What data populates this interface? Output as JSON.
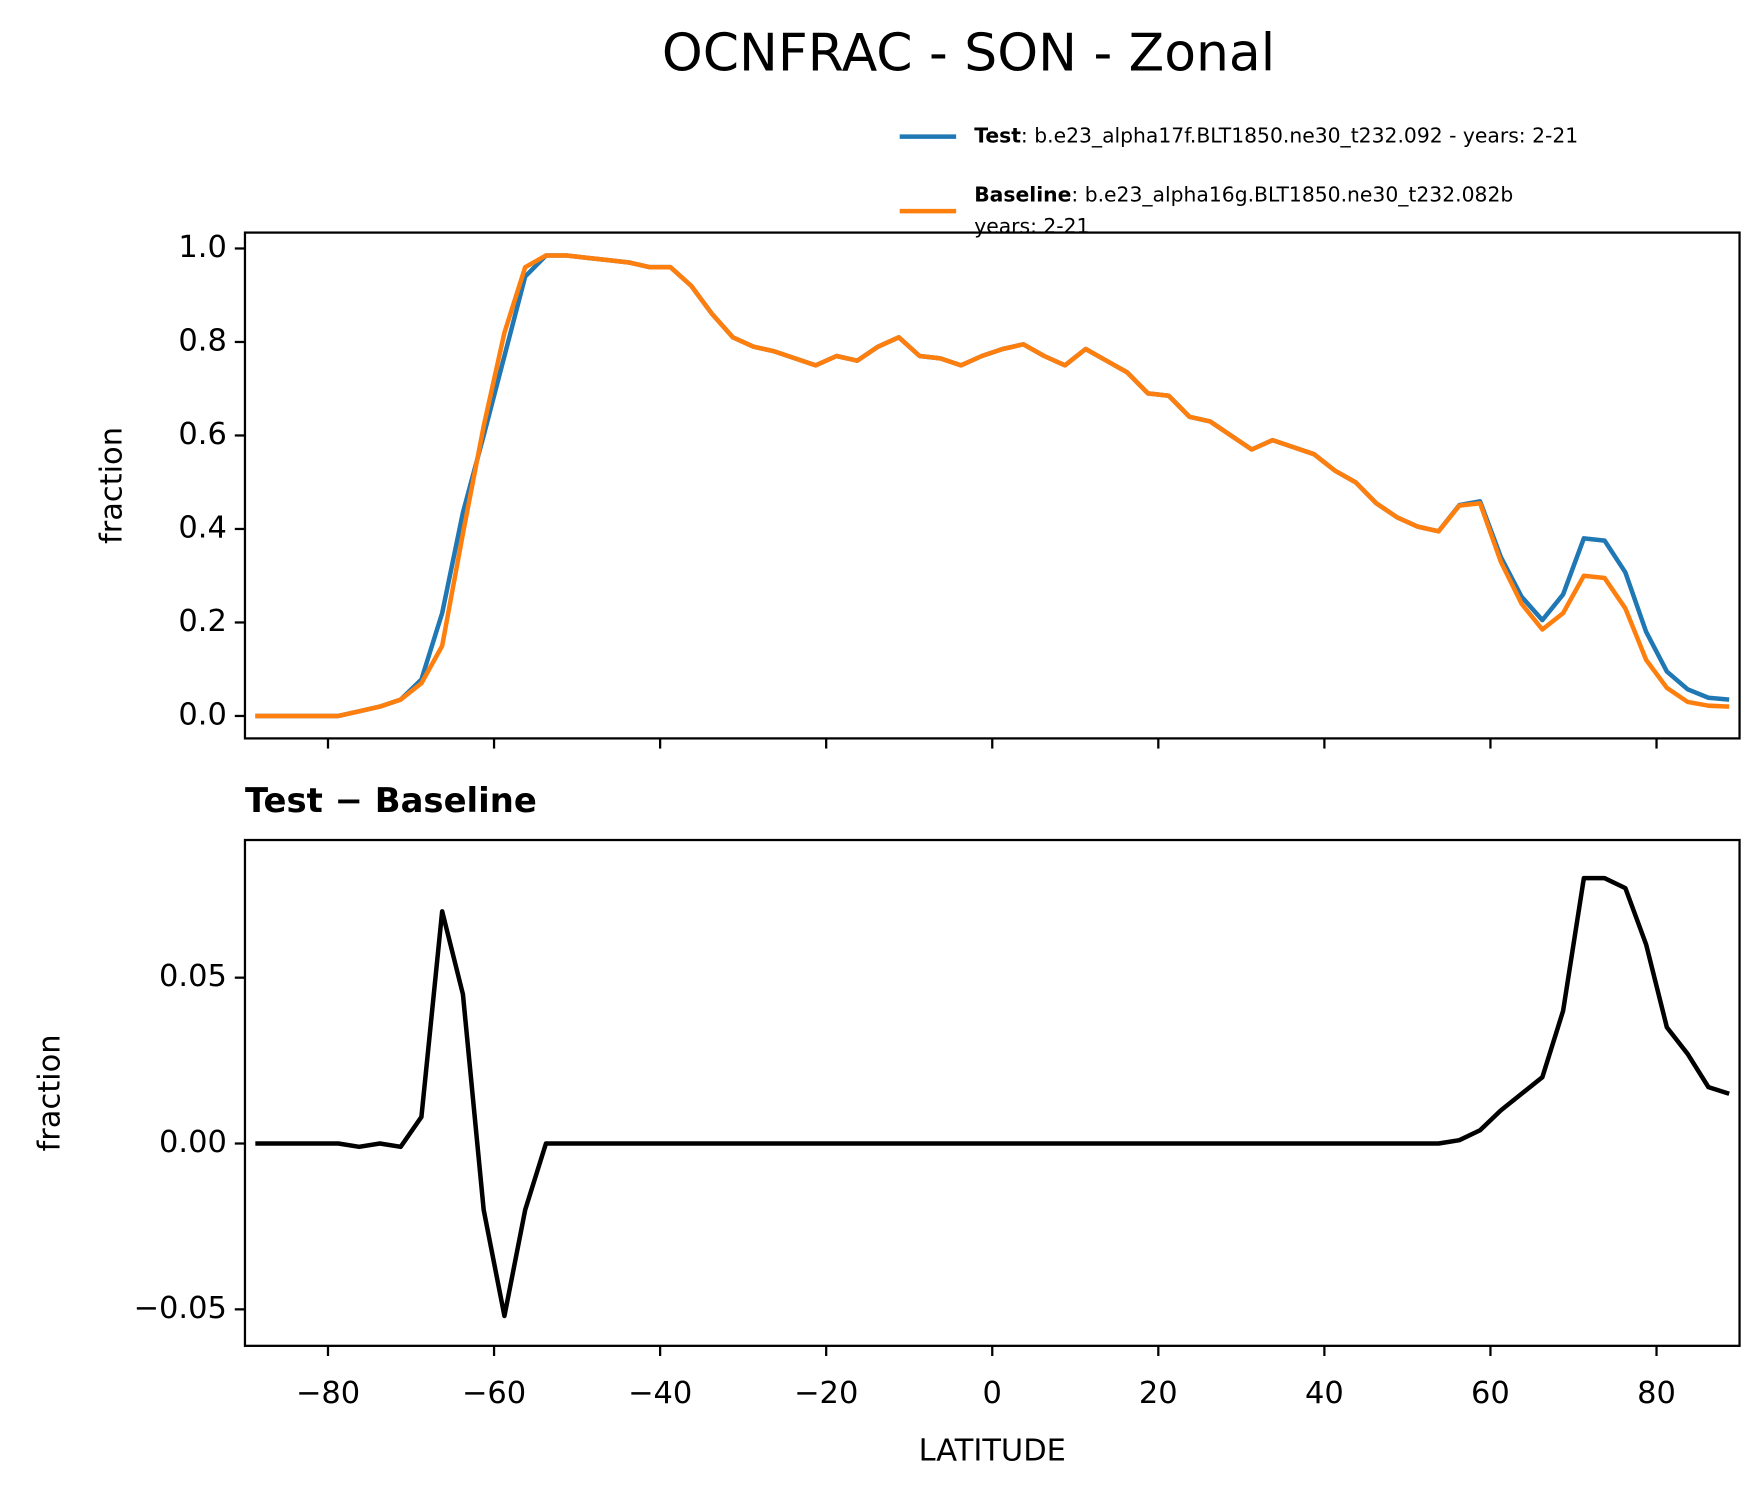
{
  "title": "OCNFRAC - SON - Zonal",
  "chart_data": [
    {
      "type": "line",
      "legend": "upper right",
      "ylabel": "fraction",
      "xlim": [
        -90,
        90
      ],
      "ylim": [
        -0.048,
        1.034
      ],
      "xticks": [
        -80,
        -60,
        -40,
        -20,
        0,
        20,
        40,
        60,
        80
      ],
      "yticks": [
        {
          "value": 0,
          "label": "0.0"
        },
        0.2,
        0.4,
        0.6,
        0.8,
        {
          "value": 1,
          "label": "1.0"
        }
      ],
      "x": [
        -88.75,
        -86.25,
        -83.75,
        -81.25,
        -78.75,
        -76.25,
        -73.75,
        -71.25,
        -68.75,
        -66.25,
        -63.75,
        -61.25,
        -58.75,
        -56.25,
        -53.75,
        -51.25,
        -48.75,
        -46.25,
        -43.75,
        -41.25,
        -38.75,
        -36.25,
        -33.75,
        -31.25,
        -28.75,
        -26.25,
        -23.75,
        -21.25,
        -18.75,
        -16.25,
        -13.75,
        -11.25,
        -8.75,
        -6.25,
        -3.75,
        -1.25,
        1.25,
        3.75,
        6.25,
        8.75,
        11.25,
        13.75,
        16.25,
        18.75,
        21.25,
        23.75,
        26.25,
        28.75,
        31.25,
        33.75,
        36.25,
        38.75,
        41.25,
        43.75,
        46.25,
        48.75,
        51.25,
        53.75,
        56.25,
        58.75,
        61.25,
        63.75,
        66.25,
        68.75,
        71.25,
        73.75,
        76.25,
        78.75,
        81.25,
        83.75,
        86.25,
        88.75
      ],
      "series": [
        {
          "name": "Test",
          "case_lines": [
            ": b.e23_alpha17f.BLT1850.ne30_t232.092 - years: 2-21"
          ],
          "color": "#1f77b4",
          "values": [
            0,
            0,
            0,
            0,
            0,
            0.01,
            0.02,
            0.035,
            0.078,
            0.22,
            0.435,
            0.6,
            0.77,
            0.94,
            0.985,
            0.985,
            0.98,
            0.975,
            0.97,
            0.96,
            0.96,
            0.92,
            0.86,
            0.81,
            0.79,
            0.78,
            0.765,
            0.75,
            0.77,
            0.76,
            0.79,
            0.81,
            0.77,
            0.765,
            0.75,
            0.77,
            0.785,
            0.795,
            0.77,
            0.75,
            0.785,
            0.76,
            0.735,
            0.69,
            0.685,
            0.64,
            0.63,
            0.6,
            0.57,
            0.59,
            0.575,
            0.56,
            0.525,
            0.5,
            0.455,
            0.425,
            0.405,
            0.395,
            0.451,
            0.459,
            0.34,
            0.255,
            0.205,
            0.26,
            0.38,
            0.375,
            0.307,
            0.18,
            0.095,
            0.057,
            0.039,
            0.035
          ]
        },
        {
          "name": "Baseline",
          "case_lines": [
            ": b.e23_alpha16g.BLT1850.ne30_t232.082b",
            "years: 2-21"
          ],
          "color": "#ff7f0e",
          "values": [
            0,
            0,
            0,
            0,
            0,
            0.01,
            0.02,
            0.035,
            0.07,
            0.15,
            0.39,
            0.62,
            0.82,
            0.96,
            0.985,
            0.985,
            0.98,
            0.975,
            0.97,
            0.96,
            0.96,
            0.92,
            0.86,
            0.81,
            0.79,
            0.78,
            0.765,
            0.75,
            0.77,
            0.76,
            0.79,
            0.81,
            0.77,
            0.765,
            0.75,
            0.77,
            0.785,
            0.795,
            0.77,
            0.75,
            0.785,
            0.76,
            0.735,
            0.69,
            0.685,
            0.64,
            0.63,
            0.6,
            0.57,
            0.59,
            0.575,
            0.56,
            0.525,
            0.5,
            0.455,
            0.425,
            0.405,
            0.395,
            0.45,
            0.455,
            0.33,
            0.24,
            0.185,
            0.22,
            0.3,
            0.295,
            0.23,
            0.12,
            0.06,
            0.03,
            0.022,
            0.02
          ]
        }
      ]
    },
    {
      "type": "line",
      "title": "Test − Baseline",
      "xlabel": "LATITUDE",
      "ylabel": "fraction",
      "xlim": [
        -90,
        90
      ],
      "ylim": [
        -0.061,
        0.0915
      ],
      "xticks": [
        {
          "value": -80,
          "label": "−80"
        },
        {
          "value": -60,
          "label": "−60"
        },
        {
          "value": -40,
          "label": "−40"
        },
        {
          "value": -20,
          "label": "−20"
        },
        0,
        20,
        40,
        60,
        80
      ],
      "yticks": [
        {
          "value": -0.05,
          "label": "−0.05"
        },
        {
          "value": 0,
          "label": "0.00"
        },
        0.05
      ],
      "x": [
        -88.75,
        -86.25,
        -83.75,
        -81.25,
        -78.75,
        -76.25,
        -73.75,
        -71.25,
        -68.75,
        -66.25,
        -63.75,
        -61.25,
        -58.75,
        -56.25,
        -53.75,
        -51.25,
        -48.75,
        -46.25,
        -43.75,
        -41.25,
        -38.75,
        -36.25,
        -33.75,
        -31.25,
        -28.75,
        -26.25,
        -23.75,
        -21.25,
        -18.75,
        -16.25,
        -13.75,
        -11.25,
        -8.75,
        -6.25,
        -3.75,
        -1.25,
        1.25,
        3.75,
        6.25,
        8.75,
        11.25,
        13.75,
        16.25,
        18.75,
        21.25,
        23.75,
        26.25,
        28.75,
        31.25,
        33.75,
        36.25,
        38.75,
        41.25,
        43.75,
        46.25,
        48.75,
        51.25,
        53.75,
        56.25,
        58.75,
        61.25,
        63.75,
        66.25,
        68.75,
        71.25,
        73.75,
        76.25,
        78.75,
        81.25,
        83.75,
        86.25,
        88.75
      ],
      "series": [
        {
          "color": "#000000",
          "values": [
            0,
            0,
            0,
            0,
            0,
            -0.001,
            0,
            -0.001,
            0.008,
            0.07,
            0.045,
            -0.02,
            -0.052,
            -0.02,
            0,
            0,
            0,
            0,
            0,
            0,
            0,
            0,
            0,
            0,
            0,
            0,
            0,
            0,
            0,
            0,
            0,
            0,
            0,
            0,
            0,
            0,
            0,
            0,
            0,
            0,
            0,
            0,
            0,
            0,
            0,
            0,
            0,
            0,
            0,
            0,
            0,
            0,
            0,
            0,
            0,
            0,
            0,
            0,
            0.001,
            0.004,
            0.01,
            0.015,
            0.02,
            0.04,
            0.08,
            0.08,
            0.077,
            0.06,
            0.035,
            0.027,
            0.017,
            0.015
          ]
        }
      ]
    }
  ]
}
